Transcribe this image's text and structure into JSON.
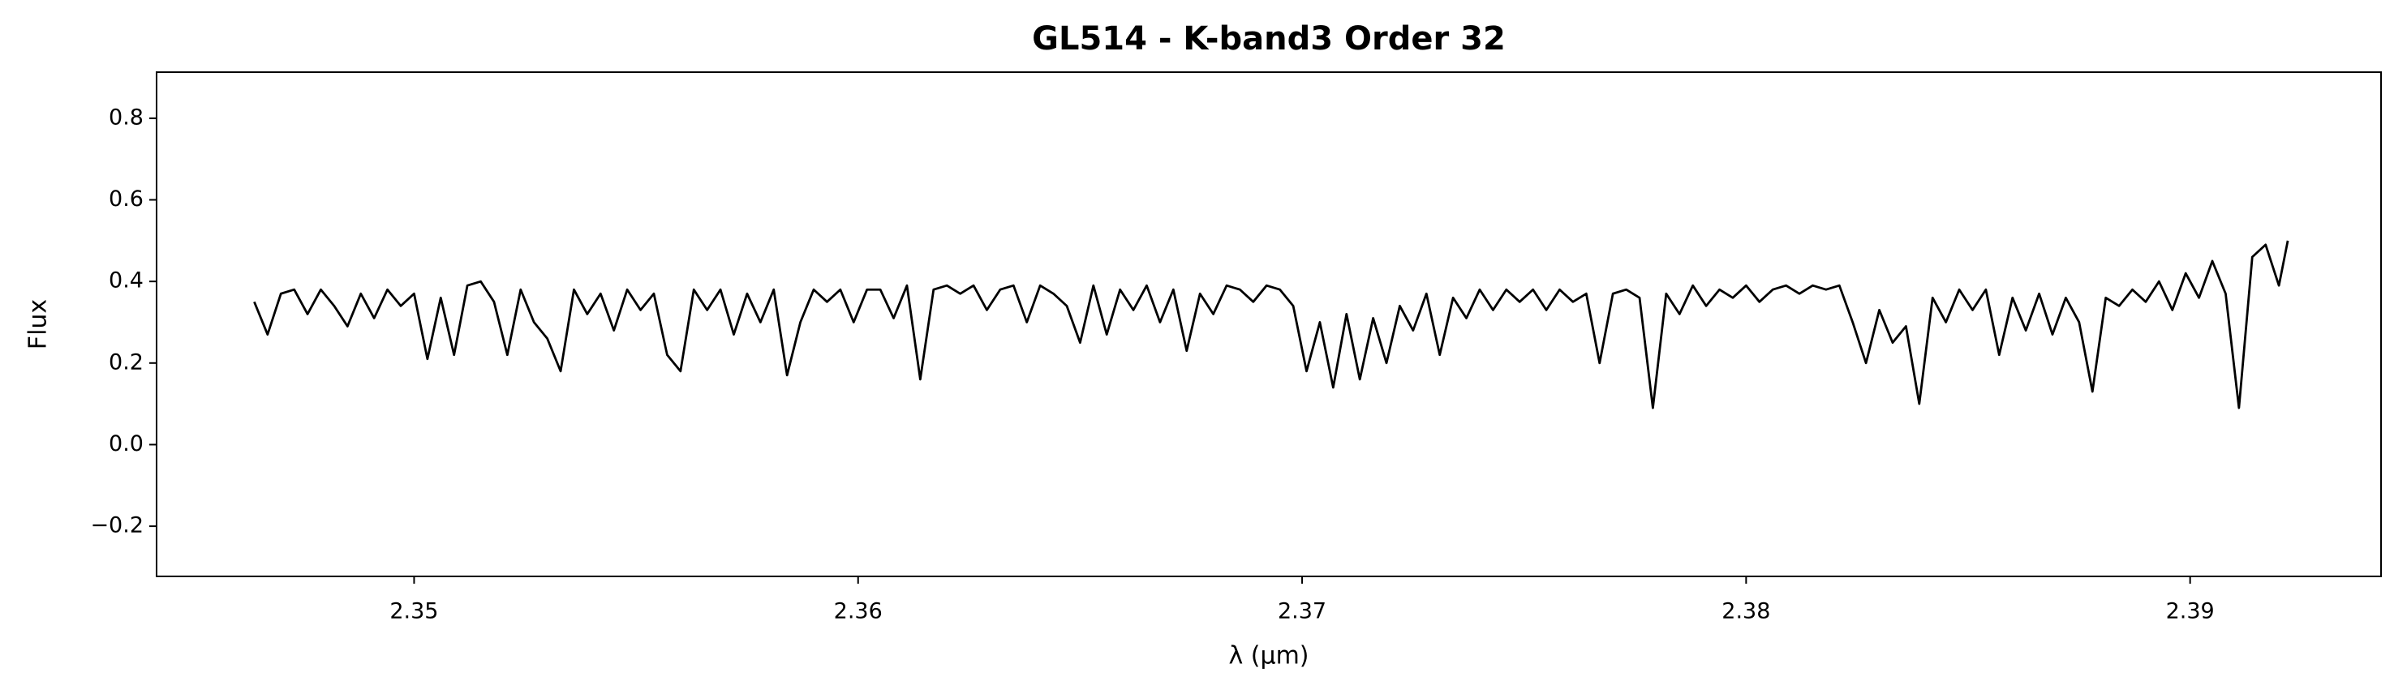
{
  "chart_data": {
    "type": "line",
    "title": "GL514 - K-band3 Order 32",
    "xlabel": "λ (μm)",
    "ylabel": "Flux",
    "color": "#000000",
    "x": [
      2.3464,
      2.3467,
      2.347,
      2.3473,
      2.3476,
      2.3479,
      2.3482,
      2.3485,
      2.3488,
      2.3491,
      2.3494,
      2.3497,
      2.35,
      2.3503,
      2.3506,
      2.3509,
      2.3512,
      2.3515,
      2.3518,
      2.3521,
      2.3524,
      2.3527,
      2.353,
      2.3533,
      2.3536,
      2.3539,
      2.3542,
      2.3545,
      2.3548,
      2.3551,
      2.3554,
      2.3557,
      2.356,
      2.3563,
      2.3566,
      2.3569,
      2.3572,
      2.3575,
      2.3578,
      2.3581,
      2.3584,
      2.3587,
      2.359,
      2.3593,
      2.3596,
      2.3599,
      2.3602,
      2.3605,
      2.3608,
      2.3611,
      2.3614,
      2.3617,
      2.362,
      2.3623,
      2.3626,
      2.3629,
      2.3632,
      2.3635,
      2.3638,
      2.3641,
      2.3644,
      2.3647,
      2.365,
      2.3653,
      2.3656,
      2.3659,
      2.3662,
      2.3665,
      2.3668,
      2.3671,
      2.3674,
      2.3677,
      2.368,
      2.3683,
      2.3686,
      2.3689,
      2.3692,
      2.3695,
      2.3698,
      2.3701,
      2.3704,
      2.3707,
      2.371,
      2.3713,
      2.3716,
      2.3719,
      2.3722,
      2.3725,
      2.3728,
      2.3731,
      2.3734,
      2.3737,
      2.374,
      2.3743,
      2.3746,
      2.3749,
      2.3752,
      2.3755,
      2.3758,
      2.3761,
      2.3764,
      2.3767,
      2.377,
      2.3773,
      2.3776,
      2.3779,
      2.3782,
      2.3785,
      2.3788,
      2.3791,
      2.3794,
      2.3797,
      2.38,
      2.3803,
      2.3806,
      2.3809,
      2.3812,
      2.3815,
      2.3818,
      2.3821,
      2.3824,
      2.3827,
      2.383,
      2.3833,
      2.3836,
      2.3839,
      2.3842,
      2.3845,
      2.3848,
      2.3851,
      2.3854,
      2.3857,
      2.386,
      2.3863,
      2.3866,
      2.3869,
      2.3872,
      2.3875,
      2.3878,
      2.3881,
      2.3884,
      2.3887,
      2.389,
      2.3893,
      2.3896,
      2.3899,
      2.3902,
      2.3905,
      2.3908,
      2.3911,
      2.3914,
      2.3917,
      2.392,
      2.3922
    ],
    "values": [
      0.35,
      0.27,
      0.37,
      0.38,
      0.32,
      0.38,
      0.34,
      0.29,
      0.37,
      0.31,
      0.38,
      0.34,
      0.37,
      0.21,
      0.36,
      0.22,
      0.39,
      0.4,
      0.35,
      0.22,
      0.38,
      0.3,
      0.26,
      0.18,
      0.38,
      0.32,
      0.37,
      0.28,
      0.38,
      0.33,
      0.37,
      0.22,
      0.18,
      0.38,
      0.33,
      0.38,
      0.27,
      0.37,
      0.3,
      0.38,
      0.17,
      0.3,
      0.38,
      0.35,
      0.38,
      0.3,
      0.38,
      0.38,
      0.31,
      0.39,
      0.16,
      0.38,
      0.39,
      0.37,
      0.39,
      0.33,
      0.38,
      0.39,
      0.3,
      0.39,
      0.37,
      0.34,
      0.25,
      0.39,
      0.27,
      0.38,
      0.33,
      0.39,
      0.3,
      0.38,
      0.23,
      0.37,
      0.32,
      0.39,
      0.38,
      0.35,
      0.39,
      0.38,
      0.34,
      0.18,
      0.3,
      0.14,
      0.32,
      0.16,
      0.31,
      0.2,
      0.34,
      0.28,
      0.37,
      0.22,
      0.36,
      0.31,
      0.38,
      0.33,
      0.38,
      0.35,
      0.38,
      0.33,
      0.38,
      0.35,
      0.37,
      0.2,
      0.37,
      0.38,
      0.36,
      0.09,
      0.37,
      0.32,
      0.39,
      0.34,
      0.38,
      0.36,
      0.39,
      0.35,
      0.38,
      0.39,
      0.37,
      0.39,
      0.38,
      0.39,
      0.3,
      0.2,
      0.33,
      0.25,
      0.29,
      0.1,
      0.36,
      0.3,
      0.38,
      0.33,
      0.38,
      0.22,
      0.36,
      0.28,
      0.37,
      0.27,
      0.36,
      0.3,
      0.13,
      0.36,
      0.34,
      0.38,
      0.35,
      0.4,
      0.33,
      0.42,
      0.36,
      0.45,
      0.37,
      0.09,
      0.46,
      0.49,
      0.39,
      0.5
    ],
    "xlim": [
      2.3442,
      2.3943
    ],
    "ylim": [
      -0.323,
      0.913
    ],
    "xticks": [
      2.35,
      2.36,
      2.37,
      2.38,
      2.39
    ],
    "yticks": [
      {
        "value": -0.2,
        "label": "−0.2"
      },
      {
        "value": 0,
        "label": "0.0"
      },
      0.2,
      0.4,
      0.6,
      0.8
    ]
  }
}
